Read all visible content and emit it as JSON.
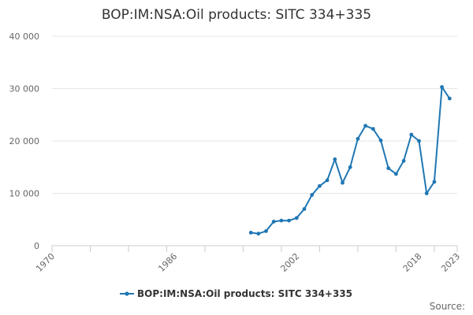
{
  "chart_data": {
    "type": "line",
    "title": "BOP:IM:NSA:Oil products: SITC 334+335",
    "xlabel": "",
    "ylabel": "",
    "xlim": [
      1970,
      2023
    ],
    "ylim": [
      0,
      40000
    ],
    "x_ticks": [
      1970,
      1986,
      2002,
      2018,
      2023
    ],
    "x_tick_labels": [
      "1970",
      "1986",
      "2002",
      "2018",
      "2023"
    ],
    "y_ticks": [
      0,
      10000,
      20000,
      30000,
      40000
    ],
    "y_tick_labels": [
      "0",
      "10 000",
      "20 000",
      "30 000",
      "40 000"
    ],
    "grid": true,
    "legend": "bottom",
    "series": [
      {
        "name": "BOP:IM:NSA:Oil products: SITC 334+335",
        "color": "#1f77b4",
        "x": [
          1996,
          1997,
          1998,
          1999,
          2000,
          2001,
          2002,
          2003,
          2004,
          2005,
          2006,
          2007,
          2008,
          2009,
          2010,
          2011,
          2012,
          2013,
          2014,
          2015,
          2016,
          2017,
          2018,
          2019,
          2020,
          2021,
          2022,
          2023
        ],
        "values": [
          2500,
          2300,
          2800,
          4600,
          4800,
          4800,
          5300,
          7000,
          9700,
          11400,
          12500,
          16500,
          12000,
          15000,
          20400,
          22900,
          22300,
          20100,
          14800,
          13700,
          16200,
          21200,
          20000,
          10000,
          12200,
          30300,
          28100,
          null
        ]
      }
    ],
    "source_label": "Source:"
  }
}
